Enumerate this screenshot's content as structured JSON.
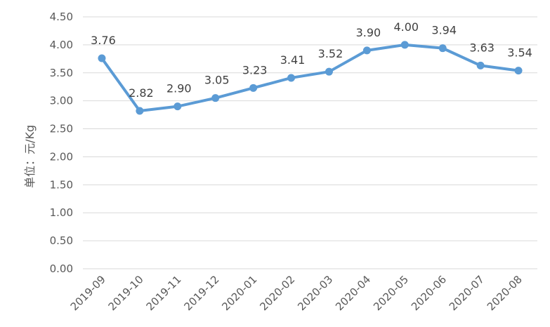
{
  "chart_data": {
    "type": "line",
    "title": "",
    "xlabel": "",
    "ylabel": "单位：元/Kg",
    "ylim": [
      0,
      4.5
    ],
    "ytick_step": 0.5,
    "yticks": [
      "0.00",
      "0.50",
      "1.00",
      "1.50",
      "2.00",
      "2.50",
      "3.00",
      "3.50",
      "4.00",
      "4.50"
    ],
    "grid": true,
    "legend": "none",
    "categories": [
      "2019-09",
      "2019-10",
      "2019-11",
      "2019-12",
      "2020-01",
      "2020-02",
      "2020-03",
      "2020-04",
      "2020-05",
      "2020-06",
      "2020-07",
      "2020-08"
    ],
    "series": [
      {
        "values": [
          3.76,
          2.82,
          2.9,
          3.05,
          3.23,
          3.41,
          3.52,
          3.9,
          4.0,
          3.94,
          3.63,
          3.54
        ],
        "labels": [
          "3.76",
          "2.82",
          "2.90",
          "3.05",
          "3.23",
          "3.41",
          "3.52",
          "3.90",
          "4.00",
          "3.94",
          "3.63",
          "3.54"
        ],
        "color": "#5b9bd5"
      }
    ]
  }
}
